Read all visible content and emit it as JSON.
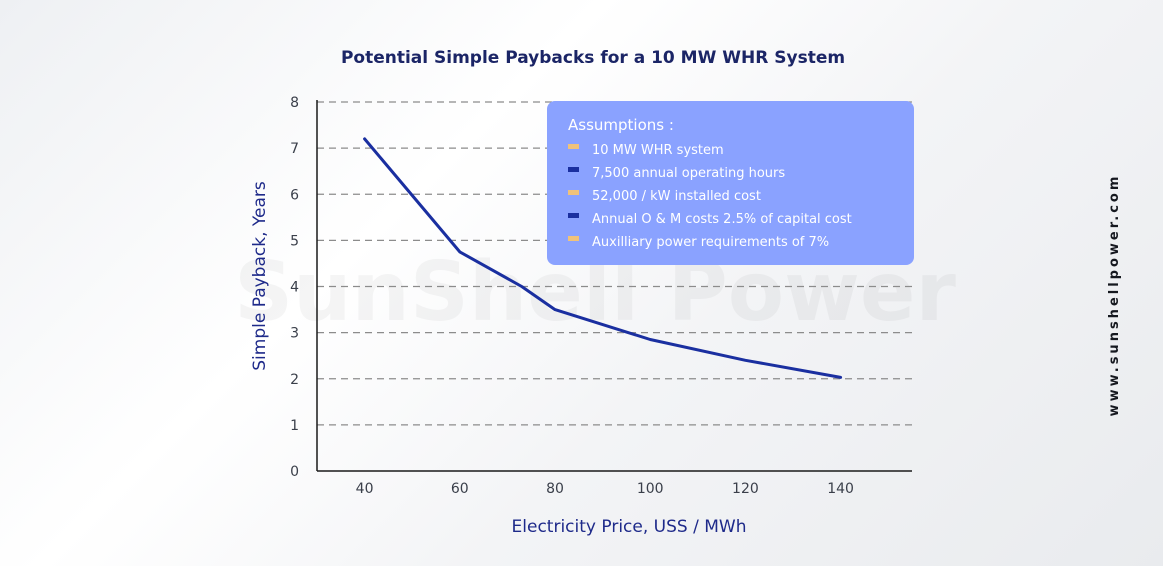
{
  "chart_data": {
    "type": "line",
    "title": "Potential Simple Paybacks for a 10 MW WHR System",
    "xlabel": "Electricity Price, USS / MWh",
    "ylabel": "Simple Payback, Years",
    "x_ticks": [
      "40",
      "60",
      "80",
      "100",
      "120",
      "140"
    ],
    "y_ticks": [
      "0",
      "1",
      "2",
      "3",
      "4",
      "5",
      "6",
      "7",
      "8"
    ],
    "xlim": [
      30,
      155
    ],
    "ylim": [
      0,
      8
    ],
    "grid": "horizontal dashed",
    "series": [
      {
        "color": "#1a2fa0",
        "x": [
          40,
          60,
          73,
          80,
          100,
          120,
          140
        ],
        "y": [
          7.2,
          4.75,
          4.0,
          3.5,
          2.85,
          2.4,
          2.03
        ]
      }
    ]
  },
  "assumptions": {
    "title": "Assumptions :",
    "items": [
      {
        "text": "10 MW WHR system",
        "bullet_color": "#f0c27a"
      },
      {
        "text": "7,500 annual operating hours",
        "bullet_color": "#1a2fa0"
      },
      {
        "text": "52,000 / kW installed cost",
        "bullet_color": "#f0c27a"
      },
      {
        "text": "Annual O & M costs 2.5% of capital cost",
        "bullet_color": "#1a2fa0"
      },
      {
        "text": "Auxilliary power requirements of 7%",
        "bullet_color": "#f0c27a"
      }
    ],
    "box_color": "#8aa2ff"
  },
  "watermark": "SunShell Power",
  "website": "www.sunshellpower.com"
}
